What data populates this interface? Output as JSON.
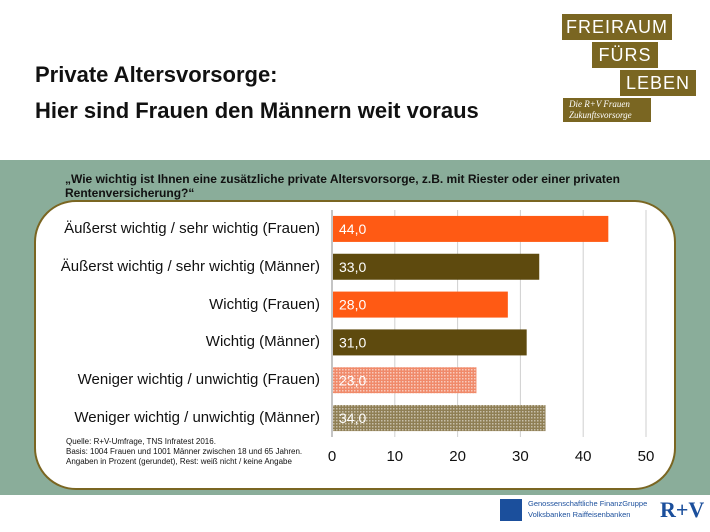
{
  "header": {
    "title_line1": "Private Altersvorsorge:",
    "title_line2": "Hier sind Frauen den Männern weit voraus"
  },
  "logo": {
    "line1": "FREIRAUM",
    "line2": "FÜRS",
    "line3": "LEBEN",
    "tagline1": "Die R+V Frauen",
    "tagline2": "Zukunftsvorsorge"
  },
  "question": "„Wie wichtig ist Ihnen eine zusätzliche private Altersvorsorge, z.B. mit Riester oder einer privaten Rentenversicherung?“",
  "chart_data": {
    "type": "bar",
    "orientation": "horizontal",
    "categories": [
      "Äußerst wichtig / sehr wichtig (Frauen)",
      "Äußerst wichtig / sehr wichtig (Männer)",
      "Wichtig (Frauen)",
      "Wichtig (Männer)",
      "Weniger wichtig / unwichtig (Frauen)",
      "Weniger wichtig / unwichtig (Männer)"
    ],
    "values": [
      44.0,
      33.0,
      28.0,
      31.0,
      23.0,
      34.0
    ],
    "value_labels": [
      "44,0",
      "33,0",
      "28,0",
      "31,0",
      "23,0",
      "34,0"
    ],
    "colors": [
      "#ff5a14",
      "#5e4a0e",
      "#ff5a14",
      "#5e4a0e",
      "#f08a6a",
      "#a89a74"
    ],
    "patterned": [
      false,
      false,
      false,
      false,
      true,
      true
    ],
    "xlim": [
      0,
      50
    ],
    "xticks": [
      0,
      10,
      20,
      30,
      40,
      50
    ],
    "grid": true
  },
  "source": {
    "line1": "Quelle: R+V-Umfrage, TNS Infratest 2016.",
    "line2": "Basis: 1004 Frauen und 1001 Männer zwischen 18 und 65 Jahren.",
    "line3": "Angaben in Prozent (gerundet), Rest: weiß nicht / keine Angabe"
  },
  "footer": {
    "line1": "Genossenschaftliche FinanzGruppe",
    "line2": "Volksbanken Raiffeisenbanken",
    "brand": "R+V"
  }
}
